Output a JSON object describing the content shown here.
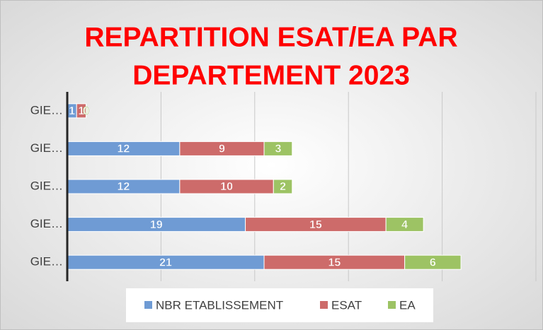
{
  "chart_data": {
    "type": "stacked_barh",
    "title": [
      "REPARTITION ESAT/EA PAR",
      "DEPARTEMENT 2023"
    ],
    "categories": [
      "GIE…",
      "GIE…",
      "GIE…",
      "GIE…",
      "GIE…"
    ],
    "series": [
      {
        "name": "NBR ETABLISSEMENT",
        "color": "#6f9bd4",
        "values": [
          1,
          12,
          12,
          19,
          21
        ]
      },
      {
        "name": "ESAT",
        "color": "#cd6b6a",
        "values": [
          1,
          9,
          10,
          15,
          15
        ]
      },
      {
        "name": "EA",
        "color": "#9dc364",
        "values": [
          0,
          3,
          2,
          4,
          6
        ]
      }
    ],
    "xlim": [
      0,
      50
    ],
    "xticks": [
      0,
      10,
      20,
      30,
      40,
      50
    ],
    "grid": true,
    "legend": "bottom"
  }
}
